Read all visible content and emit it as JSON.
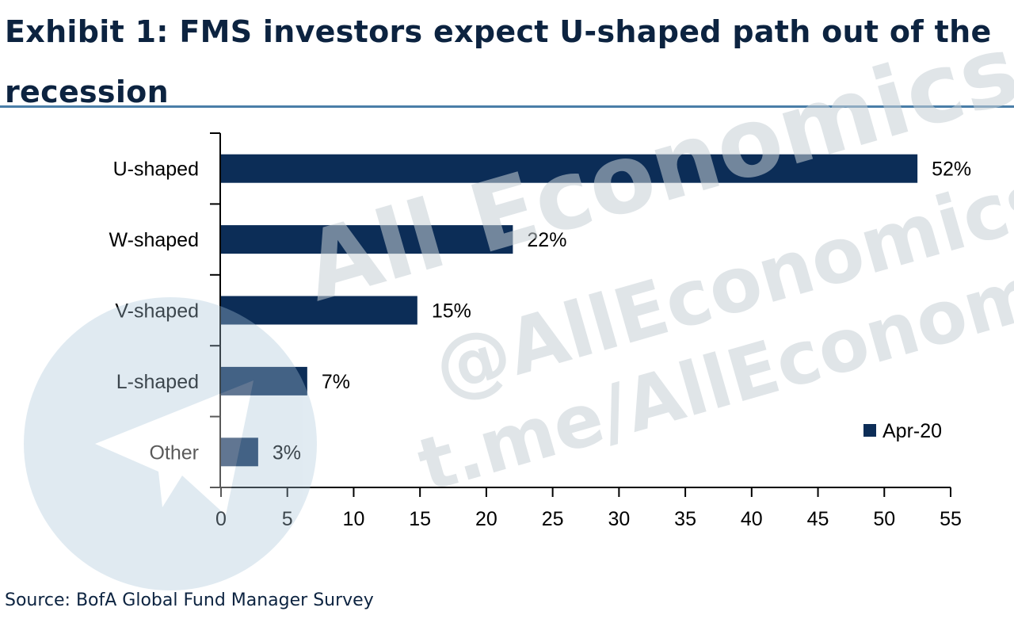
{
  "title": "Exhibit 1: FMS investors expect U-shaped path out of the recession",
  "source": "Source: BofA Global Fund Manager Survey",
  "colors": {
    "bar": "#0c2d57",
    "text": "#0c2340",
    "rule": "#4a7ea8",
    "axis": "#000000"
  },
  "chart_data": {
    "type": "bar",
    "orientation": "horizontal",
    "categories": [
      "U-shaped",
      "W-shaped",
      "V-shaped",
      "L-shaped",
      "Other"
    ],
    "series": [
      {
        "name": "Apr-20",
        "values": [
          52.5,
          22,
          14.8,
          6.5,
          2.8
        ],
        "data_labels": [
          "52%",
          "22%",
          "15%",
          "7%",
          "3%"
        ]
      }
    ],
    "xlim": [
      0,
      55
    ],
    "xticks": [
      0,
      5,
      10,
      15,
      20,
      25,
      30,
      35,
      40,
      45,
      50,
      55
    ],
    "grid": false,
    "legend_position": "bottom-right"
  },
  "watermark": {
    "lines": [
      "All Economics",
      "@AllEconomics",
      "t.me/AllEconomics"
    ],
    "icon": "telegram-logo-icon"
  }
}
